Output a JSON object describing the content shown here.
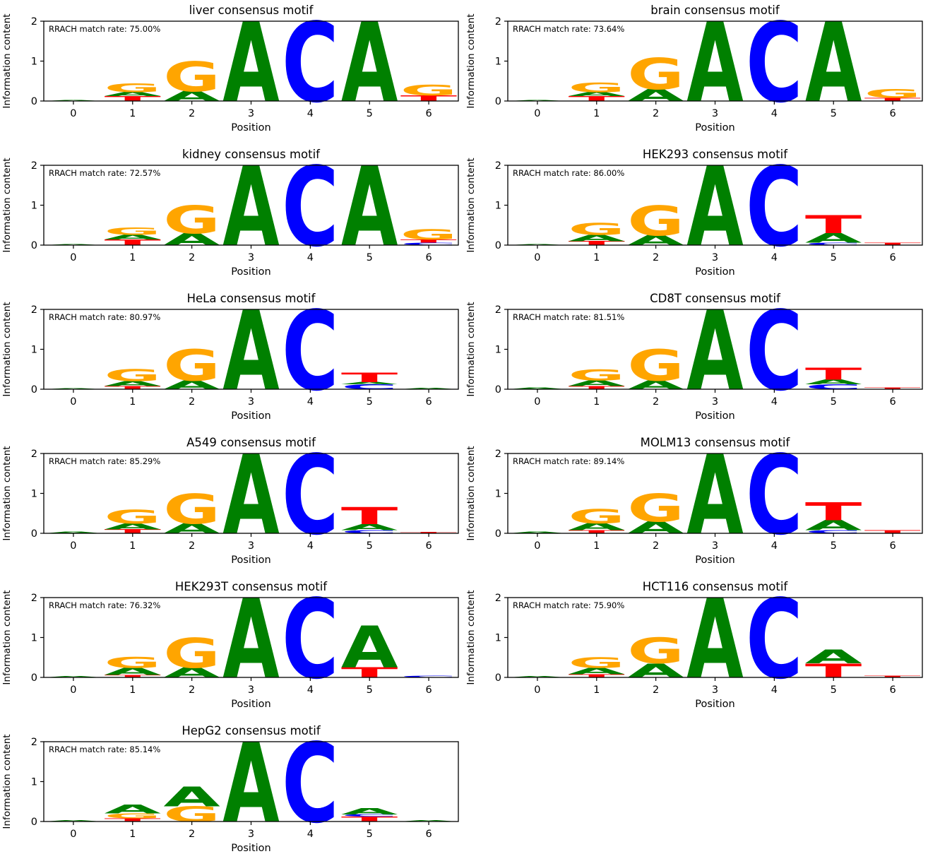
{
  "figure": {
    "background": "#ffffff",
    "ylabel": "Information content",
    "xlabel": "Position",
    "yticks": [
      "0",
      "1",
      "2"
    ],
    "xticks": [
      "0",
      "1",
      "2",
      "3",
      "4",
      "5",
      "6"
    ],
    "colors": {
      "A": "#008000",
      "C": "#0000ff",
      "G": "#ffa500",
      "T": "#ff0000"
    }
  },
  "chart_data": [
    {
      "type": "logo",
      "id": "liver",
      "title": "liver consensus motif",
      "annotation": "RRACH match rate: 75.00%",
      "ylim": [
        0,
        2
      ],
      "stacks": [
        [
          {
            "letter": "A",
            "height": 0.02
          }
        ],
        [
          {
            "letter": "T",
            "height": 0.12
          },
          {
            "letter": "A",
            "height": 0.1
          },
          {
            "letter": "G",
            "height": 0.22
          }
        ],
        [
          {
            "letter": "A",
            "height": 0.25
          },
          {
            "letter": "G",
            "height": 0.75
          }
        ],
        [
          {
            "letter": "A",
            "height": 2.0
          }
        ],
        [
          {
            "letter": "C",
            "height": 2.0
          }
        ],
        [
          {
            "letter": "A",
            "height": 2.0
          }
        ],
        [
          {
            "letter": "T",
            "height": 0.14
          },
          {
            "letter": "G",
            "height": 0.26
          }
        ]
      ]
    },
    {
      "type": "logo",
      "id": "brain",
      "title": "brain consensus motif",
      "annotation": "RRACH match rate: 73.64%",
      "ylim": [
        0,
        2
      ],
      "stacks": [
        [
          {
            "letter": "A",
            "height": 0.02
          }
        ],
        [
          {
            "letter": "T",
            "height": 0.12
          },
          {
            "letter": "A",
            "height": 0.1
          },
          {
            "letter": "G",
            "height": 0.24
          }
        ],
        [
          {
            "letter": "A",
            "height": 0.3
          },
          {
            "letter": "G",
            "height": 0.78
          }
        ],
        [
          {
            "letter": "A",
            "height": 2.0
          }
        ],
        [
          {
            "letter": "C",
            "height": 2.0
          }
        ],
        [
          {
            "letter": "A",
            "height": 2.0
          }
        ],
        [
          {
            "letter": "T",
            "height": 0.08
          },
          {
            "letter": "G",
            "height": 0.22
          }
        ]
      ]
    },
    {
      "type": "logo",
      "id": "kidney",
      "title": "kidney consensus motif",
      "annotation": "RRACH match rate: 72.57%",
      "ylim": [
        0,
        2
      ],
      "stacks": [
        [
          {
            "letter": "A",
            "height": 0.02
          }
        ],
        [
          {
            "letter": "T",
            "height": 0.14
          },
          {
            "letter": "A",
            "height": 0.12
          },
          {
            "letter": "G",
            "height": 0.18
          }
        ],
        [
          {
            "letter": "A",
            "height": 0.3
          },
          {
            "letter": "G",
            "height": 0.7
          }
        ],
        [
          {
            "letter": "A",
            "height": 2.0
          }
        ],
        [
          {
            "letter": "C",
            "height": 2.0
          }
        ],
        [
          {
            "letter": "A",
            "height": 2.0
          }
        ],
        [
          {
            "letter": "C",
            "height": 0.06
          },
          {
            "letter": "T",
            "height": 0.08
          },
          {
            "letter": "G",
            "height": 0.25
          }
        ]
      ]
    },
    {
      "type": "logo",
      "id": "HEK293",
      "title": "HEK293 consensus motif",
      "annotation": "RRACH match rate: 86.00%",
      "ylim": [
        0,
        2
      ],
      "stacks": [
        [
          {
            "letter": "A",
            "height": 0.02
          }
        ],
        [
          {
            "letter": "T",
            "height": 0.1
          },
          {
            "letter": "A",
            "height": 0.16
          },
          {
            "letter": "G",
            "height": 0.3
          }
        ],
        [
          {
            "letter": "A",
            "height": 0.25
          },
          {
            "letter": "G",
            "height": 0.75
          }
        ],
        [
          {
            "letter": "A",
            "height": 2.0
          }
        ],
        [
          {
            "letter": "C",
            "height": 2.0
          }
        ],
        [
          {
            "letter": "C",
            "height": 0.06
          },
          {
            "letter": "A",
            "height": 0.24
          },
          {
            "letter": "T",
            "height": 0.45
          }
        ],
        [
          {
            "letter": "T",
            "height": 0.06
          }
        ]
      ]
    },
    {
      "type": "logo",
      "id": "HeLa",
      "title": "HeLa consensus motif",
      "annotation": "RRACH match rate: 80.97%",
      "ylim": [
        0,
        2
      ],
      "stacks": [
        [
          {
            "letter": "A",
            "height": 0.02
          }
        ],
        [
          {
            "letter": "T",
            "height": 0.08
          },
          {
            "letter": "A",
            "height": 0.12
          },
          {
            "letter": "G",
            "height": 0.3
          }
        ],
        [
          {
            "letter": "A",
            "height": 0.22
          },
          {
            "letter": "G",
            "height": 0.78
          }
        ],
        [
          {
            "letter": "A",
            "height": 2.0
          }
        ],
        [
          {
            "letter": "C",
            "height": 2.0
          }
        ],
        [
          {
            "letter": "C",
            "height": 0.12
          },
          {
            "letter": "A",
            "height": 0.06
          },
          {
            "letter": "T",
            "height": 0.24
          }
        ],
        [
          {
            "letter": "A",
            "height": 0.03
          }
        ]
      ]
    },
    {
      "type": "logo",
      "id": "CD8T",
      "title": "CD8T consensus motif",
      "annotation": "RRACH match rate: 81.51%",
      "ylim": [
        0,
        2
      ],
      "stacks": [
        [
          {
            "letter": "A",
            "height": 0.04
          }
        ],
        [
          {
            "letter": "T",
            "height": 0.08
          },
          {
            "letter": "A",
            "height": 0.14
          },
          {
            "letter": "G",
            "height": 0.28
          }
        ],
        [
          {
            "letter": "A",
            "height": 0.22
          },
          {
            "letter": "G",
            "height": 0.78
          }
        ],
        [
          {
            "letter": "A",
            "height": 2.0
          }
        ],
        [
          {
            "letter": "C",
            "height": 2.0
          }
        ],
        [
          {
            "letter": "C",
            "height": 0.12
          },
          {
            "letter": "A",
            "height": 0.12
          },
          {
            "letter": "T",
            "height": 0.3
          }
        ],
        [
          {
            "letter": "T",
            "height": 0.04
          }
        ]
      ]
    },
    {
      "type": "logo",
      "id": "A549",
      "title": "A549 consensus motif",
      "annotation": "RRACH match rate: 85.29%",
      "ylim": [
        0,
        2
      ],
      "stacks": [
        [
          {
            "letter": "A",
            "height": 0.04
          }
        ],
        [
          {
            "letter": "T",
            "height": 0.1
          },
          {
            "letter": "A",
            "height": 0.15
          },
          {
            "letter": "G",
            "height": 0.35
          }
        ],
        [
          {
            "letter": "A",
            "height": 0.25
          },
          {
            "letter": "G",
            "height": 0.75
          }
        ],
        [
          {
            "letter": "A",
            "height": 2.0
          }
        ],
        [
          {
            "letter": "C",
            "height": 2.0
          }
        ],
        [
          {
            "letter": "C",
            "height": 0.08
          },
          {
            "letter": "A",
            "height": 0.15
          },
          {
            "letter": "T",
            "height": 0.42
          }
        ],
        [
          {
            "letter": "T",
            "height": 0.03
          }
        ]
      ]
    },
    {
      "type": "logo",
      "id": "MOLM13",
      "title": "MOLM13 consensus motif",
      "annotation": "RRACH match rate: 89.14%",
      "ylim": [
        0,
        2
      ],
      "stacks": [
        [
          {
            "letter": "A",
            "height": 0.04
          }
        ],
        [
          {
            "letter": "T",
            "height": 0.08
          },
          {
            "letter": "A",
            "height": 0.18
          },
          {
            "letter": "G",
            "height": 0.36
          }
        ],
        [
          {
            "letter": "A",
            "height": 0.3
          },
          {
            "letter": "G",
            "height": 0.7
          }
        ],
        [
          {
            "letter": "A",
            "height": 2.0
          }
        ],
        [
          {
            "letter": "C",
            "height": 2.0
          }
        ],
        [
          {
            "letter": "C",
            "height": 0.08
          },
          {
            "letter": "A",
            "height": 0.25
          },
          {
            "letter": "T",
            "height": 0.45
          }
        ],
        [
          {
            "letter": "T",
            "height": 0.08
          }
        ]
      ]
    },
    {
      "type": "logo",
      "id": "HEK293T",
      "title": "HEK293T consensus motif",
      "annotation": "RRACH match rate: 76.32%",
      "ylim": [
        0,
        2
      ],
      "stacks": [
        [
          {
            "letter": "A",
            "height": 0.03
          }
        ],
        [
          {
            "letter": "T",
            "height": 0.06
          },
          {
            "letter": "A",
            "height": 0.18
          },
          {
            "letter": "G",
            "height": 0.28
          }
        ],
        [
          {
            "letter": "A",
            "height": 0.25
          },
          {
            "letter": "G",
            "height": 0.75
          }
        ],
        [
          {
            "letter": "A",
            "height": 2.0
          }
        ],
        [
          {
            "letter": "C",
            "height": 2.0
          }
        ],
        [
          {
            "letter": "T",
            "height": 0.25
          },
          {
            "letter": "A",
            "height": 1.05
          }
        ],
        [
          {
            "letter": "C",
            "height": 0.05
          }
        ]
      ]
    },
    {
      "type": "logo",
      "id": "HCT116",
      "title": "HCT116 consensus motif",
      "annotation": "RRACH match rate: 75.90%",
      "ylim": [
        0,
        2
      ],
      "stacks": [
        [
          {
            "letter": "A",
            "height": 0.03
          }
        ],
        [
          {
            "letter": "T",
            "height": 0.08
          },
          {
            "letter": "A",
            "height": 0.16
          },
          {
            "letter": "G",
            "height": 0.26
          }
        ],
        [
          {
            "letter": "A",
            "height": 0.35
          },
          {
            "letter": "G",
            "height": 0.65
          }
        ],
        [
          {
            "letter": "A",
            "height": 2.0
          }
        ],
        [
          {
            "letter": "C",
            "height": 2.0
          }
        ],
        [
          {
            "letter": "T",
            "height": 0.35
          },
          {
            "letter": "A",
            "height": 0.35
          }
        ],
        [
          {
            "letter": "T",
            "height": 0.04
          }
        ]
      ]
    },
    {
      "type": "logo",
      "id": "HepG2",
      "title": "HepG2 consensus motif",
      "annotation": "RRACH match rate: 85.14%",
      "ylim": [
        0,
        2
      ],
      "stacks": [
        [
          {
            "letter": "A",
            "height": 0.03
          }
        ],
        [
          {
            "letter": "T",
            "height": 0.08
          },
          {
            "letter": "G",
            "height": 0.12
          },
          {
            "letter": "A",
            "height": 0.22
          }
        ],
        [
          {
            "letter": "G",
            "height": 0.38
          },
          {
            "letter": "A",
            "height": 0.5
          }
        ],
        [
          {
            "letter": "A",
            "height": 2.0
          }
        ],
        [
          {
            "letter": "C",
            "height": 2.0
          }
        ],
        [
          {
            "letter": "T",
            "height": 0.12
          },
          {
            "letter": "C",
            "height": 0.06
          },
          {
            "letter": "A",
            "height": 0.16
          }
        ],
        [
          {
            "letter": "A",
            "height": 0.03
          }
        ]
      ]
    }
  ]
}
